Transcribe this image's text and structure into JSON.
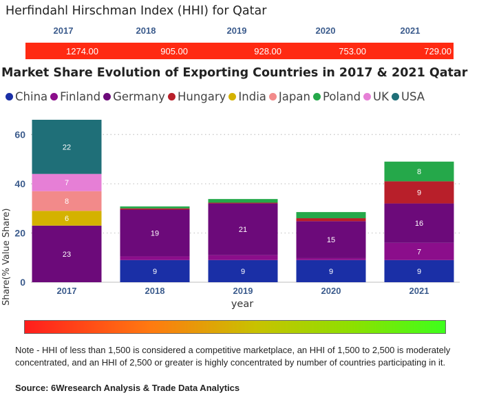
{
  "hhi": {
    "title": "Herfindahl Hirschman Index (HHI) for Qatar",
    "years": [
      "2017",
      "2018",
      "2019",
      "2020",
      "2021"
    ],
    "values": [
      "1274.00",
      "905.00",
      "928.00",
      "753.00",
      "729.00"
    ],
    "bar_color": "#ff2a12"
  },
  "legend_items": [
    {
      "name": "China",
      "color": "#1a2fa6"
    },
    {
      "name": "Finland",
      "color": "#8b0e8b"
    },
    {
      "name": "Germany",
      "color": "#6c0a7a"
    },
    {
      "name": "Hungary",
      "color": "#b81f2a"
    },
    {
      "name": "India",
      "color": "#d4b200"
    },
    {
      "name": "Japan",
      "color": "#f28a8a"
    },
    {
      "name": "Poland",
      "color": "#25a84a"
    },
    {
      "name": "UK",
      "color": "#e67fd6"
    },
    {
      "name": "USA",
      "color": "#1f6f78"
    }
  ],
  "chart_data": {
    "type": "bar",
    "stacked": true,
    "title": "Market Share Evolution of Exporting Countries in 2017 & 2021 Qatar",
    "xlabel": "year",
    "ylabel": "Share(% Value Share)",
    "categories": [
      "2017",
      "2018",
      "2019",
      "2020",
      "2021"
    ],
    "ylim": [
      0,
      66
    ],
    "yticks": [
      0,
      20,
      40,
      60
    ],
    "grid": true,
    "legend_position": "top",
    "series": [
      {
        "name": "China",
        "color": "#1a2fa6",
        "values": [
          0,
          9,
          9,
          9,
          9
        ]
      },
      {
        "name": "Finland",
        "color": "#8b0e8b",
        "values": [
          0,
          1.5,
          2,
          0.8,
          7
        ]
      },
      {
        "name": "Germany",
        "color": "#6c0a7a",
        "values": [
          23,
          19,
          21,
          15,
          16
        ]
      },
      {
        "name": "Hungary",
        "color": "#b81f2a",
        "values": [
          0,
          0.5,
          0.3,
          1.2,
          9
        ]
      },
      {
        "name": "India",
        "color": "#d4b200",
        "values": [
          6,
          0,
          0,
          0,
          0
        ]
      },
      {
        "name": "Japan",
        "color": "#f28a8a",
        "values": [
          8,
          0,
          0,
          0,
          0
        ]
      },
      {
        "name": "Poland",
        "color": "#25a84a",
        "values": [
          0,
          0.8,
          1.5,
          2.5,
          8
        ]
      },
      {
        "name": "UK",
        "color": "#e67fd6",
        "values": [
          7,
          0,
          0,
          0,
          0
        ]
      },
      {
        "name": "USA",
        "color": "#1f6f78",
        "values": [
          22,
          0,
          0,
          0,
          0
        ]
      }
    ],
    "data_labels": [
      [
        null,
        null,
        "23",
        null,
        "6",
        "8",
        null,
        "7",
        "22"
      ],
      [
        "9",
        null,
        "19",
        null,
        null,
        null,
        null,
        null,
        null
      ],
      [
        "9",
        null,
        "21",
        null,
        null,
        null,
        null,
        null,
        null
      ],
      [
        "9",
        null,
        "15",
        null,
        null,
        null,
        null,
        null,
        null
      ],
      [
        "9",
        "7",
        "16",
        "9",
        null,
        null,
        "8",
        null,
        null
      ]
    ]
  },
  "gradient_bar": {
    "from_color": "#ff1d1d",
    "to_color": "#3dff1c"
  },
  "note": "Note - HHI of less than 1,500 is considered a competitive marketplace, an HHI of 1,500 to 2,500 is moderately concentrated, and an HHI of 2,500 or greater is highly concentrated by number of countries participating in it.",
  "source": "Source: 6Wresearch Analysis & Trade Data Analytics"
}
